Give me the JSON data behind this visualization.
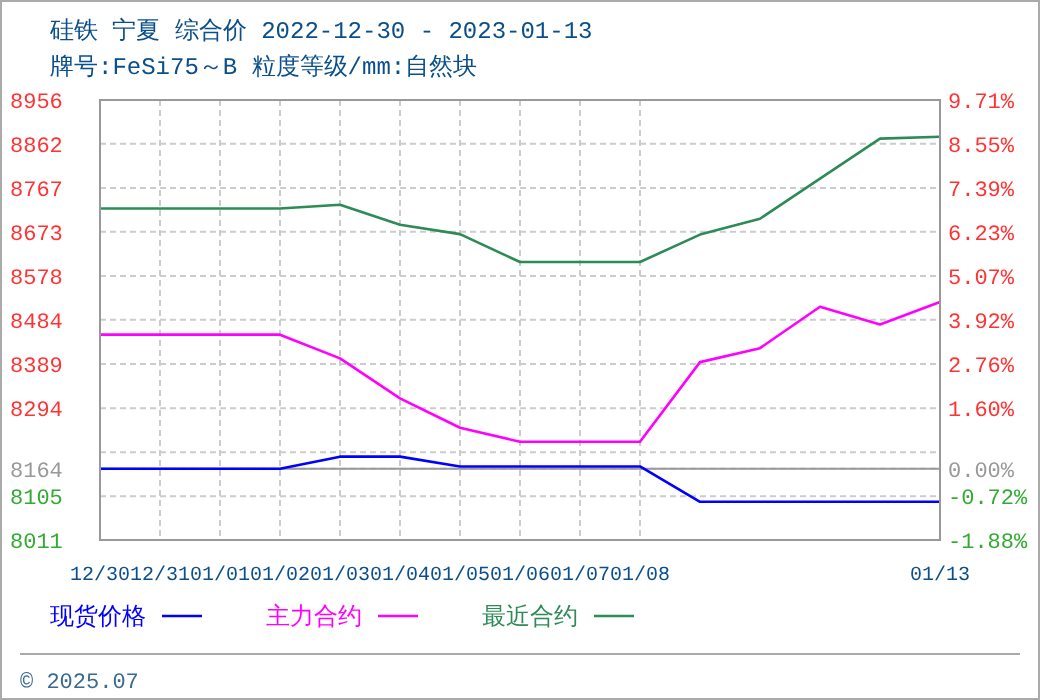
{
  "chart_data": {
    "type": "line",
    "title": "硅铁 宁夏 综合价 2022-12-30 - 2023-01-13",
    "subtitle": "牌号:FeSi75～B 粒度等级/mm:自然块",
    "categories": [
      "12/30",
      "12/31",
      "01/01",
      "01/02",
      "01/03",
      "01/04",
      "01/05",
      "01/06",
      "01/07",
      "01/08",
      null,
      null,
      null,
      null,
      "01/13"
    ],
    "series": [
      {
        "name": "现货价格",
        "color": "#0000ff",
        "values": [
          8164,
          8164,
          8164,
          8164,
          8190,
          8190,
          8169,
          8169,
          8169,
          8169,
          8093,
          8093,
          8093,
          8093,
          8093
        ]
      },
      {
        "name": "主力合约",
        "color": "#ff00ff",
        "values": [
          8452,
          8452,
          8452,
          8452,
          8401,
          8315,
          8252,
          8222,
          8222,
          8222,
          8393,
          8423,
          8512,
          8474,
          8522
        ]
      },
      {
        "name": "最近合约",
        "color": "#2e8b57",
        "values": [
          8723,
          8723,
          8723,
          8723,
          8731,
          8688,
          8668,
          8608,
          8608,
          8608,
          8667,
          8701,
          8787,
          8873,
          8877
        ]
      }
    ],
    "ylim": [
      8011,
      8956
    ],
    "yticks": [
      8956,
      8862,
      8767,
      8673,
      8578,
      8484,
      8389,
      8294,
      {
        "value": 8199.5,
        "label": null
      },
      8164,
      8105,
      8011
    ],
    "y2lim": [
      -1.88,
      9.71
    ],
    "y2ticks": [
      {
        "value": 9.71,
        "label": "9.71%"
      },
      {
        "value": 8.55,
        "label": "8.55%"
      },
      {
        "value": 7.39,
        "label": "7.39%"
      },
      {
        "value": 6.23,
        "label": "6.23%"
      },
      {
        "value": 5.07,
        "label": "5.07%"
      },
      {
        "value": 3.92,
        "label": "3.92%"
      },
      {
        "value": 2.76,
        "label": "2.76%"
      },
      {
        "value": 1.6,
        "label": "1.60%"
      },
      {
        "value": 0,
        "label": "0.00%"
      },
      {
        "value": -0.72,
        "label": "-0.72%"
      },
      {
        "value": -1.88,
        "label": "-1.88%"
      }
    ],
    "ref_lines": [
      {
        "axis": "y2",
        "value": 0,
        "color": "#999999"
      }
    ],
    "grid": true,
    "legend": "bottom",
    "annotations": [
      "© 2025.07"
    ]
  }
}
